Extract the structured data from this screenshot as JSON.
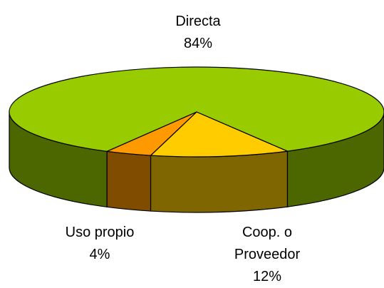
{
  "chart_data": {
    "type": "pie",
    "categories": [
      "Coop. o Proveedor",
      "Uso propio",
      "Directa"
    ],
    "values": [
      12,
      4,
      84
    ],
    "value_labels": [
      "12%",
      "4%",
      "84%"
    ],
    "colors": [
      "#ffcc00",
      "#ff9900",
      "#99cc00"
    ]
  }
}
